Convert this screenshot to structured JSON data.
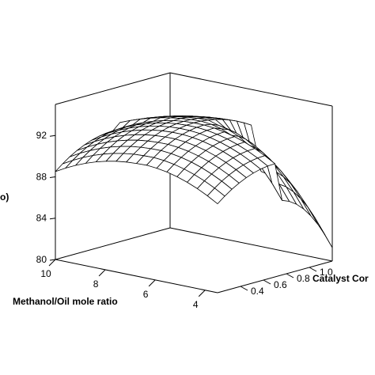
{
  "chart_data": {
    "type": "surface",
    "title": "",
    "xlabel": "Methanol/Oil mole ratio",
    "ylabel": "Catalyst Cor",
    "zlabel": "",
    "zlabel_fragment": "o)",
    "x_ticks": [
      "10",
      "8",
      "6",
      "4"
    ],
    "y_ticks": [
      "0.4",
      "0.6",
      "0.8",
      "1.0"
    ],
    "z_ticks": [
      "80",
      "84",
      "88",
      "92"
    ],
    "xlim": [
      3.5,
      10
    ],
    "ylim": [
      0.2,
      1.2
    ],
    "zlim": [
      80,
      95
    ],
    "grid": false,
    "surface": {
      "peak_x": 6.6,
      "peak_y": 0.7,
      "peak_z": 93.3,
      "corner_z": {
        "x10_y0.2": 88.5,
        "x3.5_y1.2": 81.3,
        "x3.5_y0.2": 88.6,
        "x10_y1.2": 89.8
      },
      "mesh_size": 16
    }
  }
}
